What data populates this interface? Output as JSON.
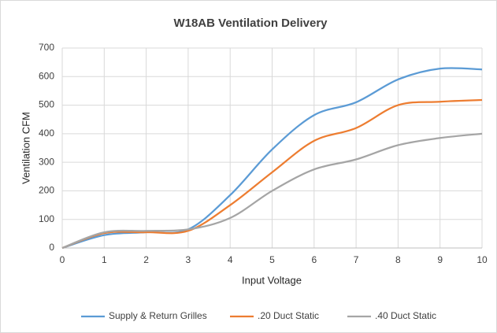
{
  "chart_data": {
    "type": "line",
    "title": "W18AB Ventilation Delivery",
    "x_label": "Input Voltage",
    "y_label": "Ventilation CFM",
    "x": [
      0,
      1,
      2,
      3,
      4,
      5,
      6,
      7,
      8,
      9,
      10
    ],
    "series": [
      {
        "name": "Supply & Return Grilles",
        "color": "#5b9bd5",
        "values": [
          0,
          45,
          55,
          65,
          185,
          345,
          465,
          510,
          590,
          628,
          625
        ]
      },
      {
        "name": ".20 Duct Static",
        "color": "#ed7d31",
        "values": [
          0,
          52,
          55,
          60,
          150,
          265,
          375,
          420,
          500,
          512,
          518
        ]
      },
      {
        "name": ".40 Duct Static",
        "color": "#a5a5a5",
        "values": [
          0,
          55,
          60,
          65,
          105,
          200,
          275,
          310,
          360,
          385,
          400
        ]
      }
    ],
    "xlim": [
      0,
      10
    ],
    "xticks": [
      0,
      1,
      2,
      3,
      4,
      5,
      6,
      7,
      8,
      9,
      10
    ],
    "ylim": [
      0,
      700
    ],
    "yticks": [
      0,
      100,
      200,
      300,
      400,
      500,
      600,
      700
    ],
    "grid": true,
    "legend": "bottom"
  }
}
